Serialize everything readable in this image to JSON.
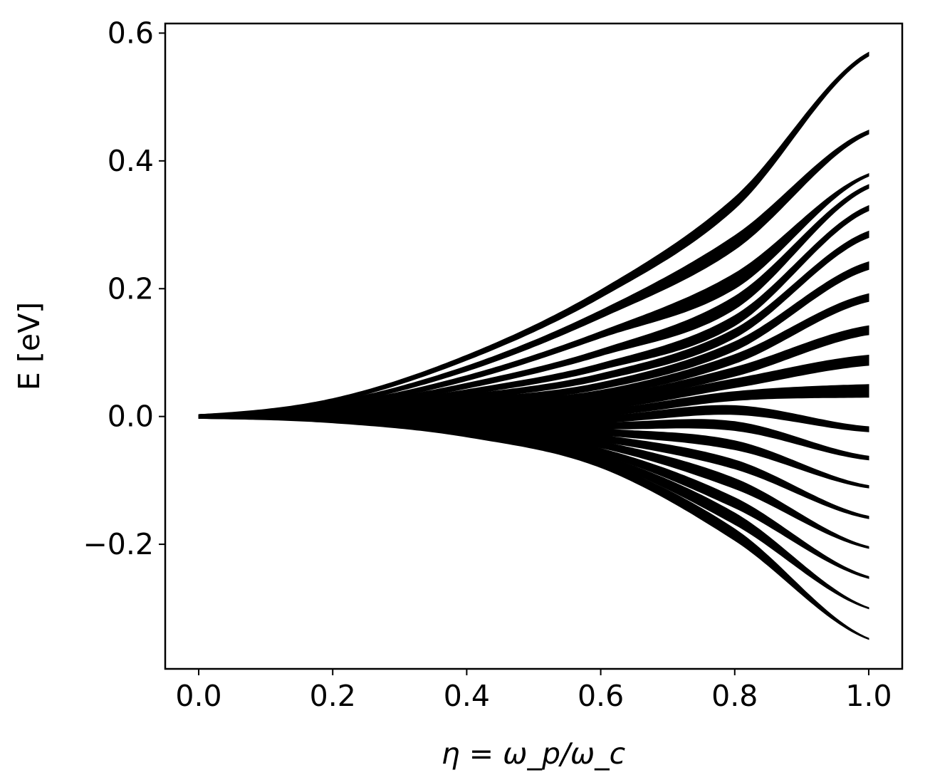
{
  "chart_data": {
    "type": "line",
    "title": "",
    "xlabel": "η = ω_p/ω_c",
    "ylabel": "E [eV]",
    "xlim": [
      -0.05,
      1.05
    ],
    "ylim": [
      -0.395,
      0.615
    ],
    "x_ticks": [
      0.0,
      0.2,
      0.4,
      0.6,
      0.8,
      1.0
    ],
    "x_tick_labels": [
      "0.0",
      "0.2",
      "0.4",
      "0.6",
      "0.8",
      "1.0"
    ],
    "y_ticks": [
      -0.2,
      0.0,
      0.2,
      0.4,
      0.6
    ],
    "y_tick_labels": [
      "−0.2",
      "0.0",
      "0.2",
      "0.4",
      "0.6"
    ],
    "grid": false,
    "legend": "none",
    "line_color": "#000000",
    "x_sampled": [
      0.0,
      0.2,
      0.4,
      0.6,
      0.8,
      1.0
    ],
    "series": [
      {
        "values": [
          0.0,
          0.025,
          0.092,
          0.192,
          0.334,
          0.567
        ],
        "band_width": [
          0.006,
          0.006,
          0.008,
          0.012,
          0.018,
          0.006
        ]
      },
      {
        "values": [
          0.0,
          0.02,
          0.075,
          0.16,
          0.272,
          0.445
        ],
        "band_width": [
          0.006,
          0.006,
          0.008,
          0.012,
          0.022,
          0.006
        ]
      },
      {
        "values": [
          0.0,
          0.016,
          0.06,
          0.128,
          0.212,
          0.378
        ],
        "band_width": [
          0.006,
          0.006,
          0.008,
          0.01,
          0.024,
          0.004
        ]
      },
      {
        "values": [
          0.0,
          0.013,
          0.048,
          0.1,
          0.178,
          0.36
        ],
        "band_width": [
          0.006,
          0.006,
          0.008,
          0.01,
          0.02,
          0.006
        ]
      },
      {
        "values": [
          0.0,
          0.01,
          0.038,
          0.078,
          0.15,
          0.326
        ],
        "band_width": [
          0.006,
          0.006,
          0.008,
          0.01,
          0.016,
          0.008
        ]
      },
      {
        "values": [
          0.0,
          0.008,
          0.03,
          0.062,
          0.13,
          0.285
        ],
        "band_width": [
          0.006,
          0.006,
          0.008,
          0.01,
          0.014,
          0.01
        ]
      },
      {
        "values": [
          0.0,
          0.006,
          0.023,
          0.048,
          0.11,
          0.236
        ],
        "band_width": [
          0.006,
          0.006,
          0.008,
          0.01,
          0.014,
          0.012
        ]
      },
      {
        "values": [
          0.0,
          0.004,
          0.017,
          0.036,
          0.09,
          0.186
        ],
        "band_width": [
          0.006,
          0.006,
          0.008,
          0.01,
          0.014,
          0.012
        ]
      },
      {
        "values": [
          0.0,
          0.003,
          0.012,
          0.026,
          0.07,
          0.135
        ],
        "band_width": [
          0.006,
          0.006,
          0.008,
          0.01,
          0.014,
          0.014
        ]
      },
      {
        "values": [
          0.0,
          0.002,
          0.008,
          0.016,
          0.052,
          0.088
        ],
        "band_width": [
          0.006,
          0.006,
          0.008,
          0.01,
          0.014,
          0.016
        ]
      },
      {
        "values": [
          0.0,
          0.001,
          0.004,
          0.006,
          0.032,
          0.04
        ],
        "band_width": [
          0.006,
          0.006,
          0.008,
          0.01,
          0.014,
          0.02
        ]
      },
      {
        "values": [
          0.0,
          0.0,
          0.0,
          -0.004,
          0.01,
          -0.02
        ],
        "band_width": [
          0.006,
          0.006,
          0.008,
          0.01,
          0.014,
          0.008
        ]
      },
      {
        "values": [
          0.0,
          -0.001,
          -0.004,
          -0.014,
          -0.015,
          -0.065
        ],
        "band_width": [
          0.006,
          0.006,
          0.008,
          0.01,
          0.014,
          0.006
        ]
      },
      {
        "values": [
          0.0,
          -0.002,
          -0.008,
          -0.024,
          -0.045,
          -0.11
        ],
        "band_width": [
          0.006,
          0.006,
          0.008,
          0.01,
          0.014,
          0.004
        ]
      },
      {
        "values": [
          0.0,
          -0.003,
          -0.012,
          -0.034,
          -0.075,
          -0.158
        ],
        "band_width": [
          0.006,
          0.006,
          0.008,
          0.01,
          0.014,
          0.004
        ]
      },
      {
        "values": [
          0.0,
          -0.004,
          -0.016,
          -0.044,
          -0.105,
          -0.205
        ],
        "band_width": [
          0.006,
          0.006,
          0.008,
          0.01,
          0.016,
          0.003
        ]
      },
      {
        "values": [
          0.0,
          -0.005,
          -0.02,
          -0.055,
          -0.135,
          -0.252
        ],
        "band_width": [
          0.006,
          0.006,
          0.008,
          0.01,
          0.016,
          0.003
        ]
      },
      {
        "values": [
          0.0,
          -0.006,
          -0.024,
          -0.065,
          -0.16,
          -0.3
        ],
        "band_width": [
          0.006,
          0.006,
          0.008,
          0.01,
          0.018,
          0.002
        ]
      },
      {
        "values": [
          0.0,
          -0.007,
          -0.028,
          -0.075,
          -0.185,
          -0.348
        ],
        "band_width": [
          0.006,
          0.006,
          0.008,
          0.01,
          0.018,
          0.002
        ]
      }
    ]
  }
}
